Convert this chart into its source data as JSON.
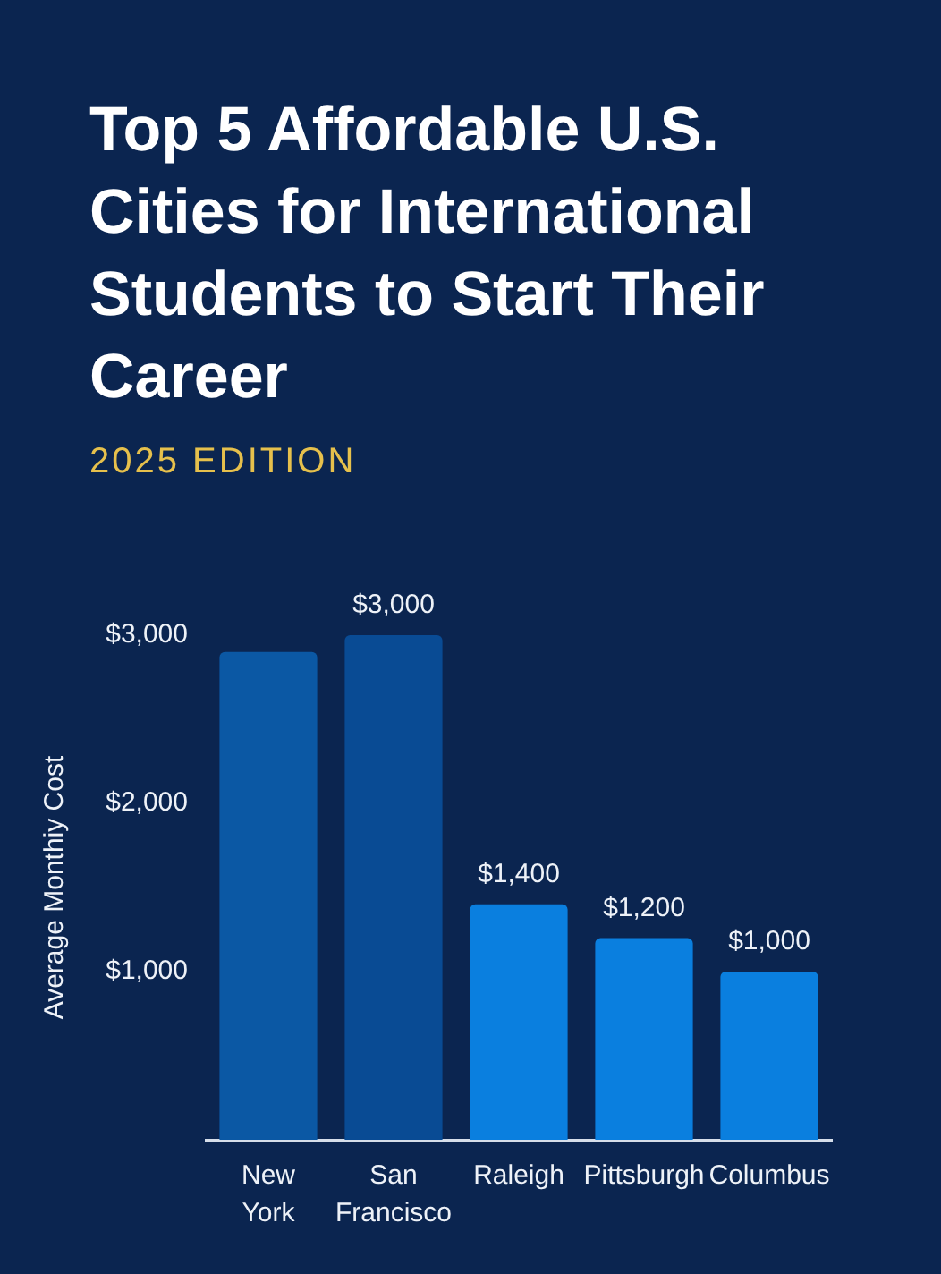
{
  "chart_data": {
    "type": "bar",
    "title": "Top 5 Affordable U.S. Cities for International Students to Start Their Career",
    "subtitle": "2025 EDITION",
    "ylabel": "Average Monthiy Cost",
    "categories": [
      "New York",
      "San Francisco",
      "Raleigh",
      "Pittsburgh",
      "Columbus"
    ],
    "values": [
      2900,
      3000,
      1400,
      1200,
      1000
    ],
    "colors": [
      "#0b58a4",
      "#094b94",
      "#0a7fdf",
      "#0a7fdf",
      "#0a7fdf"
    ],
    "value_labels": [
      null,
      "$3,000",
      "$1,400",
      "$1,200",
      "$1,000"
    ],
    "ylim": [
      0,
      3000
    ],
    "yticks": [
      {
        "value": 1000,
        "label": "$1,000"
      },
      {
        "value": 2000,
        "label": "$2,000"
      },
      {
        "value": 3000,
        "label": "$3,000"
      }
    ]
  }
}
